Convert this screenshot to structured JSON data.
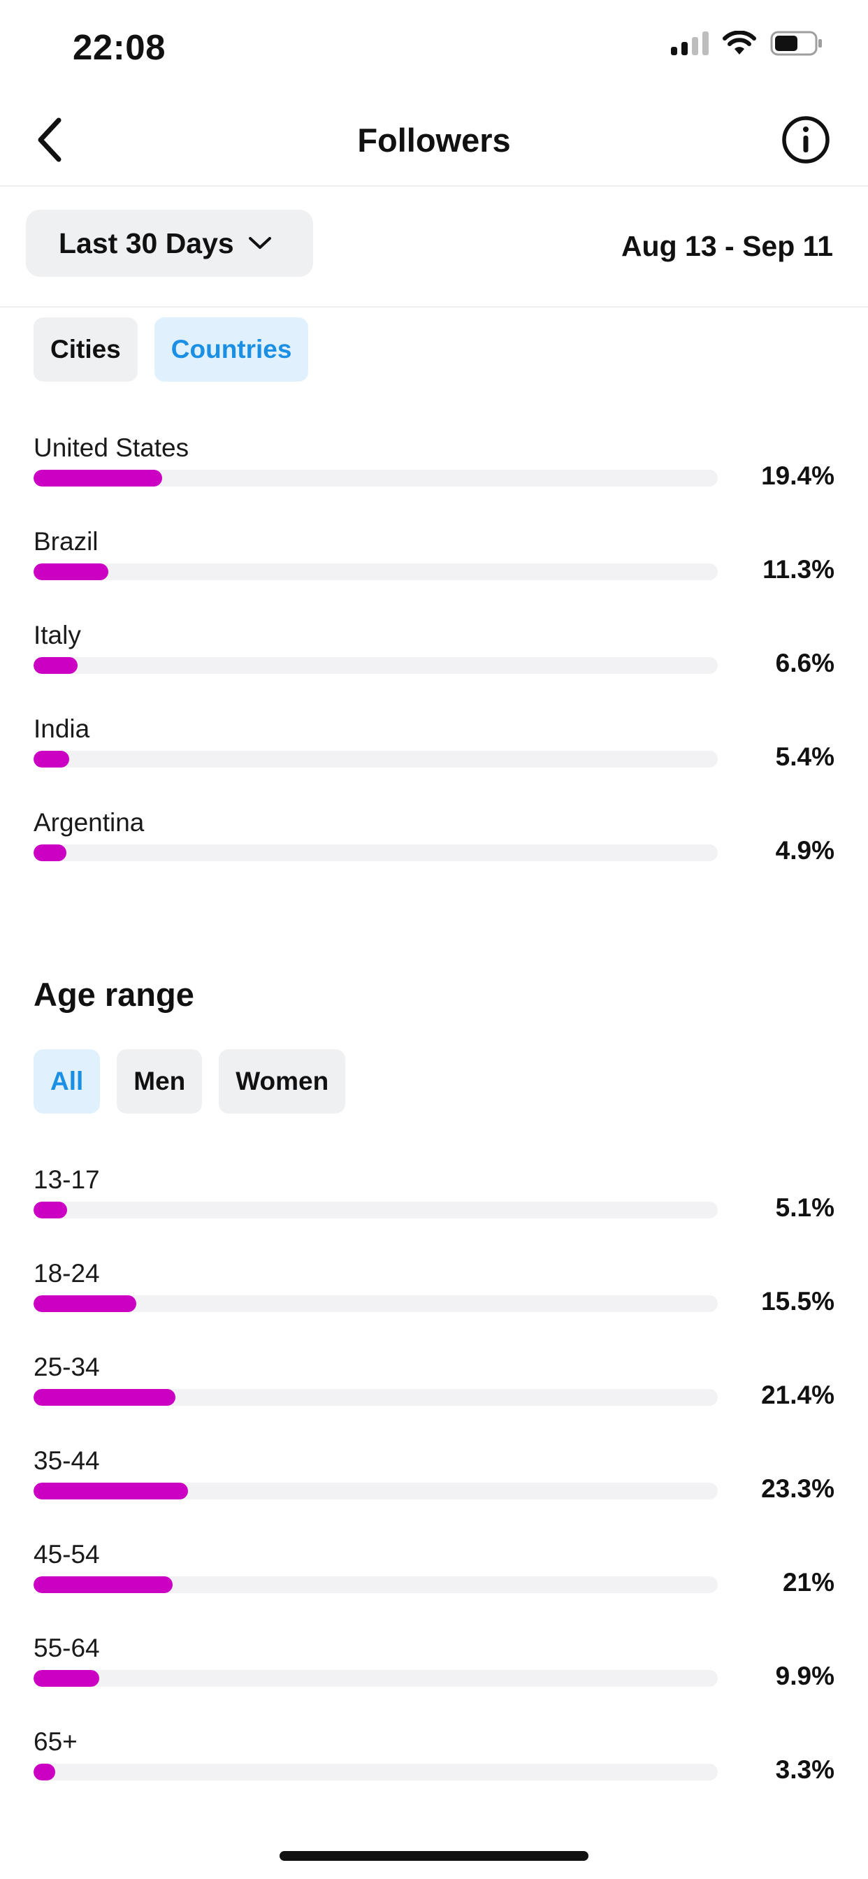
{
  "status_bar": {
    "time": "22:08",
    "icons": [
      "cellular-signal-icon",
      "wifi-icon",
      "battery-icon"
    ]
  },
  "header": {
    "title": "Followers",
    "back_icon": "chevron-left-icon",
    "info_icon": "info-circle-icon"
  },
  "filters": {
    "date_range_label": "Last 30 Days",
    "date_range_text": "Aug 13 - Sep 11"
  },
  "location": {
    "tabs": [
      {
        "label": "Cities",
        "active": false
      },
      {
        "label": "Countries",
        "active": true
      }
    ],
    "rows": [
      {
        "label": "United States",
        "value": "19.4%",
        "percent": 19.4
      },
      {
        "label": "Brazil",
        "value": "11.3%",
        "percent": 11.3
      },
      {
        "label": "Italy",
        "value": "6.6%",
        "percent": 6.6
      },
      {
        "label": "India",
        "value": "5.4%",
        "percent": 5.4
      },
      {
        "label": "Argentina",
        "value": "4.9%",
        "percent": 4.9
      }
    ]
  },
  "age": {
    "title": "Age range",
    "tabs": [
      {
        "label": "All",
        "active": true
      },
      {
        "label": "Men",
        "active": false
      },
      {
        "label": "Women",
        "active": false
      }
    ],
    "rows": [
      {
        "label": "13-17",
        "value": "5.1%",
        "percent": 5.1
      },
      {
        "label": "18-24",
        "value": "15.5%",
        "percent": 15.5
      },
      {
        "label": "25-34",
        "value": "21.4%",
        "percent": 21.4
      },
      {
        "label": "35-44",
        "value": "23.3%",
        "percent": 23.3
      },
      {
        "label": "45-54",
        "value": "21%",
        "percent": 21
      },
      {
        "label": "55-64",
        "value": "9.9%",
        "percent": 9.9
      },
      {
        "label": "65+",
        "value": "3.3%",
        "percent": 3.3
      }
    ]
  },
  "colors": {
    "bar_fill": "#cc00c2",
    "bar_track": "#f2f2f4",
    "active_chip_text": "#1a8fe3",
    "active_chip_bg": "#e0f1fd"
  }
}
